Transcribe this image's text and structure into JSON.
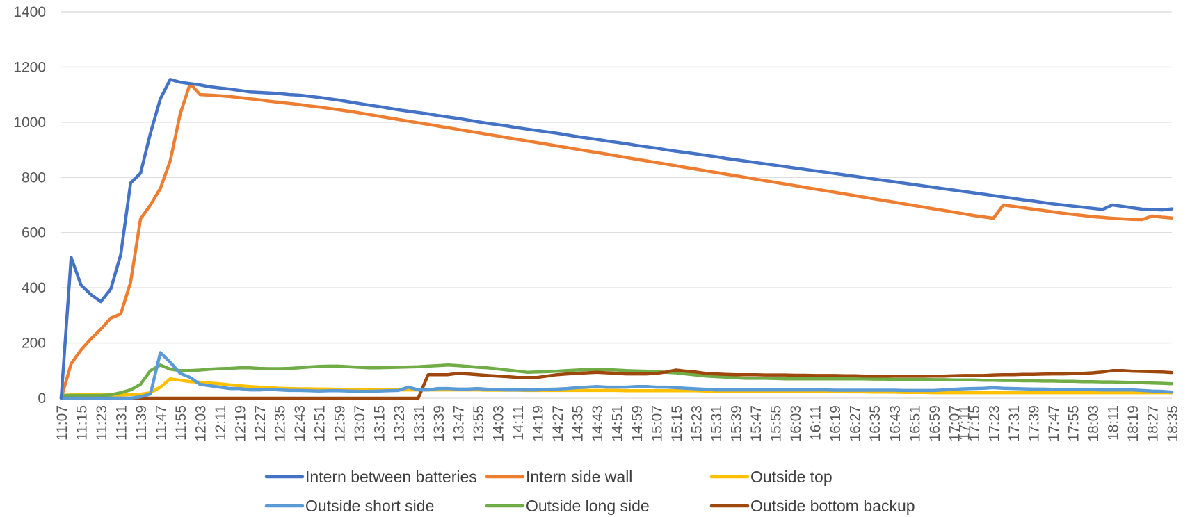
{
  "chart_data": {
    "type": "line",
    "title": "",
    "xlabel": "",
    "ylabel": "",
    "ylim": [
      0,
      1400
    ],
    "yticks": [
      0,
      200,
      400,
      600,
      800,
      1000,
      1200,
      1400
    ],
    "grid": "horizontal",
    "legend_position": "bottom",
    "x": [
      "11:07",
      "11:11",
      "11:15",
      "11:19",
      "11:23",
      "11:27",
      "11:31",
      "11:35",
      "11:39",
      "11:43",
      "11:47",
      "11:51",
      "11:55",
      "11:59",
      "12:03",
      "12:07",
      "12:11",
      "12:15",
      "12:19",
      "12:23",
      "12:27",
      "12:31",
      "12:35",
      "12:39",
      "12:43",
      "12:47",
      "12:51",
      "12:55",
      "12:59",
      "13:03",
      "13:07",
      "13:11",
      "13:15",
      "13:19",
      "13:23",
      "13:27",
      "13:31",
      "13:35",
      "13:39",
      "13:43",
      "13:47",
      "13:51",
      "13:55",
      "13:59",
      "14:03",
      "14:07",
      "14:11",
      "14:15",
      "14:19",
      "14:23",
      "14:27",
      "14:31",
      "14:35",
      "14:39",
      "14:43",
      "14:47",
      "14:51",
      "14:55",
      "14:59",
      "15:03",
      "15:07",
      "15:11",
      "15:15",
      "15:19",
      "15:23",
      "15:27",
      "15:31",
      "15:35",
      "15:39",
      "15:43",
      "15:47",
      "15:51",
      "15:55",
      "15:59",
      "16:03",
      "16:07",
      "16:11",
      "16:15",
      "16:19",
      "16:23",
      "16:27",
      "16:31",
      "16:35",
      "16:39",
      "16:43",
      "16:47",
      "16:51",
      "16:55",
      "16:59",
      "17:03",
      "17:07",
      "17:11",
      "17:15",
      "17:19",
      "17:23",
      "17:27",
      "17:31",
      "17:35",
      "17:39",
      "17:43",
      "17:47",
      "17:51",
      "17:55",
      "17:59",
      "18:03",
      "18:07",
      "18:11",
      "18:15",
      "18:19",
      "18:23",
      "18:27",
      "18:31",
      "18:35"
    ],
    "x_tick_labels": [
      "11:07",
      "11:15",
      "11:23",
      "11:31",
      "11:39",
      "11:47",
      "11:55",
      "12:03",
      "12:11",
      "12:19",
      "12:27",
      "12:35",
      "12:43",
      "12:51",
      "12:59",
      "13:07",
      "13:15",
      "13:23",
      "13:31",
      "13:39",
      "13:47",
      "13:55",
      "14:03",
      "14:11",
      "14:19",
      "14:27",
      "14:35",
      "14:43",
      "14:51",
      "14:59",
      "15:07",
      "15:15",
      "15:23",
      "15:31",
      "15:39",
      "15:47",
      "15:55",
      "16:03",
      "16:11",
      "16:19",
      "16:27",
      "16:35",
      "16:43",
      "16:51",
      "16:59",
      "17:07",
      "17:11",
      "17:15",
      "17:23",
      "17:31",
      "17:39",
      "17:47",
      "17:55",
      "18:03",
      "18:11",
      "18:19",
      "18:27",
      "18:35"
    ],
    "series": [
      {
        "name": "Intern between batteries",
        "color": "#4472C4",
        "values": [
          0,
          510,
          410,
          375,
          350,
          395,
          520,
          780,
          815,
          960,
          1085,
          1155,
          1145,
          1140,
          1135,
          1128,
          1124,
          1120,
          1115,
          1110,
          1108,
          1106,
          1104,
          1100,
          1098,
          1094,
          1090,
          1085,
          1080,
          1074,
          1068,
          1062,
          1057,
          1051,
          1045,
          1040,
          1035,
          1030,
          1024,
          1019,
          1014,
          1008,
          1002,
          996,
          991,
          986,
          980,
          975,
          970,
          965,
          960,
          954,
          948,
          943,
          938,
          932,
          927,
          922,
          916,
          911,
          906,
          900,
          895,
          890,
          885,
          880,
          875,
          869,
          864,
          859,
          854,
          849,
          844,
          839,
          834,
          829,
          824,
          819,
          814,
          809,
          804,
          799,
          794,
          789,
          784,
          779,
          774,
          769,
          764,
          759,
          754,
          749,
          744,
          739,
          734,
          729,
          724,
          719,
          714,
          709,
          704,
          700,
          696,
          692,
          688,
          684,
          700,
          695,
          690,
          685,
          684,
          682,
          686
        ]
      },
      {
        "name": "Intern side wall",
        "color": "#ED7D31",
        "values": [
          0,
          125,
          175,
          215,
          250,
          290,
          305,
          420,
          650,
          700,
          760,
          860,
          1030,
          1140,
          1100,
          1098,
          1096,
          1093,
          1089,
          1085,
          1081,
          1076,
          1072,
          1068,
          1064,
          1059,
          1055,
          1050,
          1045,
          1040,
          1034,
          1028,
          1022,
          1016,
          1010,
          1004,
          998,
          992,
          986,
          980,
          974,
          968,
          962,
          956,
          950,
          944,
          938,
          932,
          926,
          920,
          914,
          908,
          902,
          896,
          890,
          884,
          878,
          872,
          866,
          860,
          854,
          848,
          842,
          836,
          830,
          824,
          818,
          812,
          806,
          800,
          794,
          788,
          782,
          776,
          770,
          764,
          758,
          752,
          746,
          740,
          734,
          728,
          722,
          716,
          710,
          704,
          698,
          692,
          686,
          680,
          674,
          668,
          662,
          657,
          652,
          700,
          695,
          690,
          685,
          680,
          675,
          670,
          666,
          662,
          658,
          655,
          652,
          650,
          648,
          647,
          660,
          656,
          653
        ]
      },
      {
        "name": "Outside top",
        "color": "#FFC000",
        "values": [
          10,
          12,
          13,
          14,
          13,
          12,
          12,
          13,
          14,
          20,
          40,
          70,
          65,
          60,
          58,
          55,
          52,
          48,
          45,
          42,
          40,
          38,
          36,
          35,
          34,
          34,
          33,
          33,
          32,
          32,
          31,
          31,
          30,
          30,
          30,
          30,
          30,
          30,
          30,
          30,
          30,
          30,
          30,
          29,
          29,
          29,
          29,
          28,
          28,
          28,
          28,
          28,
          28,
          28,
          28,
          28,
          28,
          27,
          27,
          27,
          27,
          27,
          27,
          27,
          27,
          26,
          26,
          26,
          26,
          26,
          25,
          25,
          25,
          25,
          25,
          24,
          24,
          24,
          24,
          23,
          23,
          23,
          22,
          22,
          22,
          21,
          21,
          21,
          20,
          20,
          20,
          20,
          20,
          20,
          20,
          20,
          20,
          20,
          20,
          20,
          20,
          20,
          20,
          20,
          20,
          20,
          20,
          20,
          20,
          20,
          20,
          20,
          20
        ]
      },
      {
        "name": "Outside short side",
        "color": "#5B9BD5",
        "values": [
          0,
          0,
          0,
          0,
          0,
          0,
          0,
          0,
          5,
          15,
          165,
          130,
          90,
          75,
          50,
          45,
          40,
          35,
          35,
          30,
          30,
          32,
          30,
          28,
          28,
          27,
          26,
          27,
          27,
          26,
          25,
          25,
          26,
          27,
          28,
          40,
          30,
          30,
          35,
          35,
          33,
          33,
          35,
          32,
          31,
          30,
          30,
          30,
          30,
          32,
          33,
          35,
          38,
          40,
          42,
          40,
          40,
          40,
          42,
          42,
          40,
          40,
          38,
          36,
          34,
          32,
          30,
          30,
          30,
          30,
          30,
          30,
          30,
          30,
          30,
          30,
          30,
          30,
          29,
          29,
          29,
          29,
          29,
          29,
          29,
          28,
          28,
          28,
          28,
          30,
          32,
          34,
          35,
          36,
          38,
          36,
          35,
          34,
          33,
          33,
          32,
          32,
          32,
          31,
          31,
          30,
          30,
          30,
          30,
          28,
          26,
          25,
          22
        ]
      },
      {
        "name": "Outside long side",
        "color": "#70AD47",
        "values": [
          10,
          10,
          10,
          10,
          10,
          12,
          20,
          30,
          50,
          100,
          120,
          105,
          100,
          100,
          102,
          105,
          107,
          108,
          110,
          110,
          108,
          107,
          107,
          108,
          110,
          113,
          115,
          116,
          116,
          114,
          112,
          110,
          110,
          111,
          112,
          113,
          114,
          116,
          118,
          120,
          118,
          115,
          112,
          110,
          106,
          102,
          98,
          94,
          95,
          96,
          98,
          100,
          102,
          104,
          104,
          104,
          102,
          100,
          99,
          98,
          96,
          94,
          92,
          88,
          84,
          80,
          78,
          76,
          74,
          72,
          72,
          72,
          71,
          70,
          70,
          70,
          70,
          70,
          70,
          70,
          70,
          70,
          69,
          69,
          68,
          68,
          68,
          68,
          67,
          67,
          66,
          66,
          66,
          65,
          65,
          64,
          64,
          63,
          63,
          62,
          62,
          61,
          61,
          60,
          60,
          59,
          59,
          58,
          57,
          56,
          55,
          54,
          52
        ]
      },
      {
        "name": "Outside bottom backup",
        "color": "#9E480E",
        "values": [
          0,
          0,
          0,
          0,
          0,
          0,
          0,
          0,
          0,
          0,
          0,
          0,
          0,
          0,
          0,
          0,
          0,
          0,
          0,
          0,
          0,
          0,
          0,
          0,
          0,
          0,
          0,
          0,
          0,
          0,
          0,
          0,
          0,
          0,
          0,
          0,
          0,
          85,
          85,
          85,
          90,
          88,
          85,
          82,
          80,
          78,
          75,
          75,
          75,
          80,
          85,
          88,
          90,
          92,
          94,
          92,
          90,
          88,
          88,
          88,
          90,
          95,
          102,
          98,
          95,
          90,
          88,
          86,
          85,
          85,
          85,
          84,
          84,
          84,
          83,
          83,
          82,
          82,
          82,
          81,
          81,
          80,
          80,
          80,
          80,
          80,
          80,
          80,
          80,
          80,
          81,
          82,
          82,
          82,
          84,
          85,
          85,
          86,
          86,
          87,
          88,
          88,
          89,
          90,
          92,
          95,
          100,
          100,
          98,
          97,
          96,
          95,
          93
        ]
      }
    ]
  }
}
